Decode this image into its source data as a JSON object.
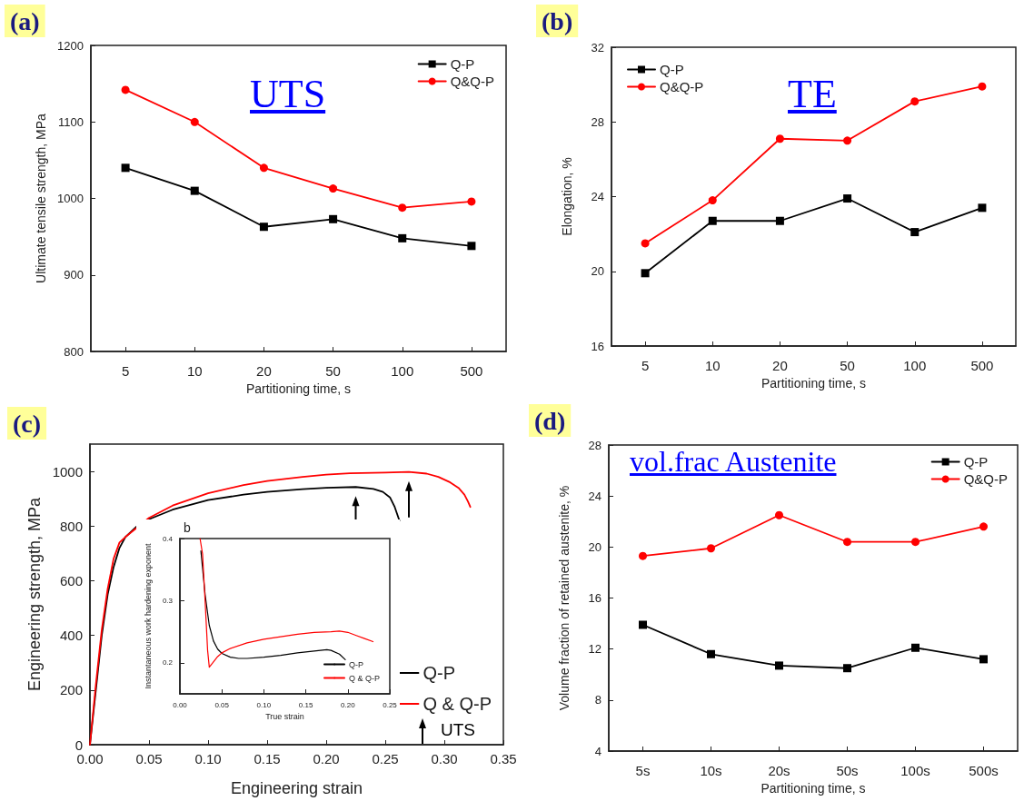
{
  "chart_data": [
    {
      "type": "line",
      "title": "(a)",
      "xlabel": "Partitioning time, s",
      "ylabel": "Ultimate tensile strength, MPa",
      "annotations": [
        "UTS"
      ],
      "categories": [
        "5",
        "10",
        "20",
        "50",
        "100",
        "500"
      ],
      "series": [
        {
          "name": "Q-P",
          "color": "#000000",
          "marker": "square",
          "values": [
            1040,
            1010,
            963,
            973,
            948,
            938
          ]
        },
        {
          "name": "Q&Q-P",
          "color": "#ff0000",
          "marker": "circle",
          "values": [
            1142,
            1100,
            1040,
            1013,
            988,
            996
          ]
        }
      ],
      "ylim": [
        800,
        1200
      ],
      "yticks": [
        800,
        900,
        1000,
        1100,
        1200
      ],
      "grid": false,
      "legend": "top right"
    },
    {
      "type": "line",
      "title": "(b)",
      "xlabel": "Partitioning time, s",
      "ylabel": "Elongation, %",
      "annotations": [
        "TE"
      ],
      "categories": [
        "5",
        "10",
        "20",
        "50",
        "100",
        "500"
      ],
      "series": [
        {
          "name": "Q-P",
          "color": "#000000",
          "marker": "square",
          "values": [
            19.9,
            22.7,
            22.7,
            23.9,
            22.1,
            23.4
          ]
        },
        {
          "name": "Q&Q-P",
          "color": "#ff0000",
          "marker": "circle",
          "values": [
            21.5,
            23.8,
            27.1,
            27.0,
            29.1,
            29.9
          ]
        }
      ],
      "ylim": [
        16,
        32
      ],
      "yticks": [
        16,
        20,
        24,
        28,
        32
      ],
      "grid": false,
      "legend": "top left"
    },
    {
      "type": "line",
      "title": "(c)",
      "xlabel": "Engineering strain",
      "ylabel": "Engineering strength, MPa",
      "annotations": [
        "UTS"
      ],
      "series": [
        {
          "name": "Q-P",
          "color": "#000000",
          "marker": "none",
          "x": [
            0,
            0.005,
            0.01,
            0.015,
            0.02,
            0.025,
            0.03,
            0.04,
            0.05,
            0.07,
            0.1,
            0.13,
            0.15,
            0.18,
            0.2,
            0.225,
            0.24,
            0.248,
            0.254,
            0.258,
            0.262
          ],
          "values": [
            0,
            200,
            400,
            550,
            650,
            720,
            760,
            800,
            825,
            860,
            895,
            915,
            925,
            935,
            940,
            943,
            936,
            925,
            905,
            870,
            820
          ]
        },
        {
          "name": "Q & Q-P",
          "color": "#ff0000",
          "marker": "none",
          "x": [
            0,
            0.005,
            0.01,
            0.015,
            0.02,
            0.025,
            0.03,
            0.04,
            0.05,
            0.07,
            0.1,
            0.13,
            0.15,
            0.18,
            0.2,
            0.22,
            0.25,
            0.27,
            0.285,
            0.295,
            0.305,
            0.312,
            0.317,
            0.32,
            0.322
          ],
          "values": [
            0,
            220,
            420,
            570,
            680,
            740,
            760,
            795,
            830,
            875,
            920,
            950,
            965,
            980,
            988,
            993,
            996,
            998,
            992,
            980,
            960,
            940,
            915,
            890,
            870
          ]
        }
      ],
      "xlim": [
        0,
        0.35
      ],
      "xticks": [
        {
          "value": 0,
          "label": "0.00"
        },
        {
          "value": 0.05,
          "label": "0.05"
        },
        {
          "value": 0.1,
          "label": "0.10"
        },
        {
          "value": 0.15,
          "label": "0.15"
        },
        {
          "value": 0.2,
          "label": "0.20"
        },
        {
          "value": 0.25,
          "label": "0.25"
        },
        {
          "value": 0.3,
          "label": "0.30"
        },
        {
          "value": 0.35,
          "label": "0.35"
        }
      ],
      "ylim": [
        0,
        1100
      ],
      "yticks": [
        0,
        200,
        400,
        600,
        800,
        1000
      ],
      "grid": false,
      "legend": "bottom right"
    },
    {
      "type": "line",
      "title": "b",
      "xlabel": "True strain",
      "ylabel": "Instantaneous work hardening exponent",
      "series": [
        {
          "name": "Q-P",
          "color": "#000000",
          "marker": "none",
          "x": [
            0.025,
            0.03,
            0.035,
            0.04,
            0.045,
            0.05,
            0.06,
            0.07,
            0.08,
            0.1,
            0.12,
            0.14,
            0.16,
            0.175,
            0.18,
            0.19,
            0.197
          ],
          "values": [
            0.38,
            0.31,
            0.26,
            0.235,
            0.222,
            0.215,
            0.209,
            0.207,
            0.207,
            0.209,
            0.212,
            0.216,
            0.219,
            0.221,
            0.22,
            0.214,
            0.205
          ]
        },
        {
          "name": "Q & Q-P",
          "color": "#ff0000",
          "marker": "none",
          "x": [
            0.024,
            0.027,
            0.03,
            0.033,
            0.035,
            0.038,
            0.045,
            0.05,
            0.06,
            0.08,
            0.1,
            0.12,
            0.14,
            0.16,
            0.18,
            0.19,
            0.2,
            0.21,
            0.22,
            0.23
          ],
          "values": [
            0.4,
            0.375,
            0.3,
            0.22,
            0.193,
            0.198,
            0.21,
            0.216,
            0.223,
            0.232,
            0.238,
            0.242,
            0.246,
            0.249,
            0.25,
            0.251,
            0.249,
            0.244,
            0.239,
            0.234
          ]
        }
      ],
      "xlim": [
        0,
        0.25
      ],
      "xticks": [
        {
          "value": 0,
          "label": "0.00"
        },
        {
          "value": 0.05,
          "label": "0.05"
        },
        {
          "value": 0.1,
          "label": "0.10"
        },
        {
          "value": 0.15,
          "label": "0.15"
        },
        {
          "value": 0.2,
          "label": "0.20"
        },
        {
          "value": 0.25,
          "label": "0.25"
        }
      ],
      "ylim": [
        0.15,
        0.4
      ],
      "yticks": [
        0.2,
        0.3,
        0.4
      ],
      "grid": false,
      "legend": "bottom right"
    },
    {
      "type": "line",
      "title": "(d)",
      "xlabel": "Partitioning time, s",
      "ylabel": "Volume fraction of retained austenite, %",
      "annotations": [
        "vol.frac Austenite"
      ],
      "categories": [
        "5s",
        "10s",
        "20s",
        "50s",
        "100s",
        "500s"
      ],
      "series": [
        {
          "name": "Q-P",
          "color": "#000000",
          "marker": "square",
          "values": [
            13.9,
            11.6,
            10.7,
            10.5,
            12.1,
            11.2
          ]
        },
        {
          "name": "Q&Q-P",
          "color": "#ff0000",
          "marker": "circle",
          "values": [
            19.3,
            19.9,
            22.5,
            20.4,
            20.4,
            21.6
          ]
        }
      ],
      "ylim": [
        4,
        28
      ],
      "yticks": [
        4,
        8,
        12,
        16,
        20,
        24,
        28
      ],
      "grid": false,
      "legend": "top right"
    }
  ]
}
